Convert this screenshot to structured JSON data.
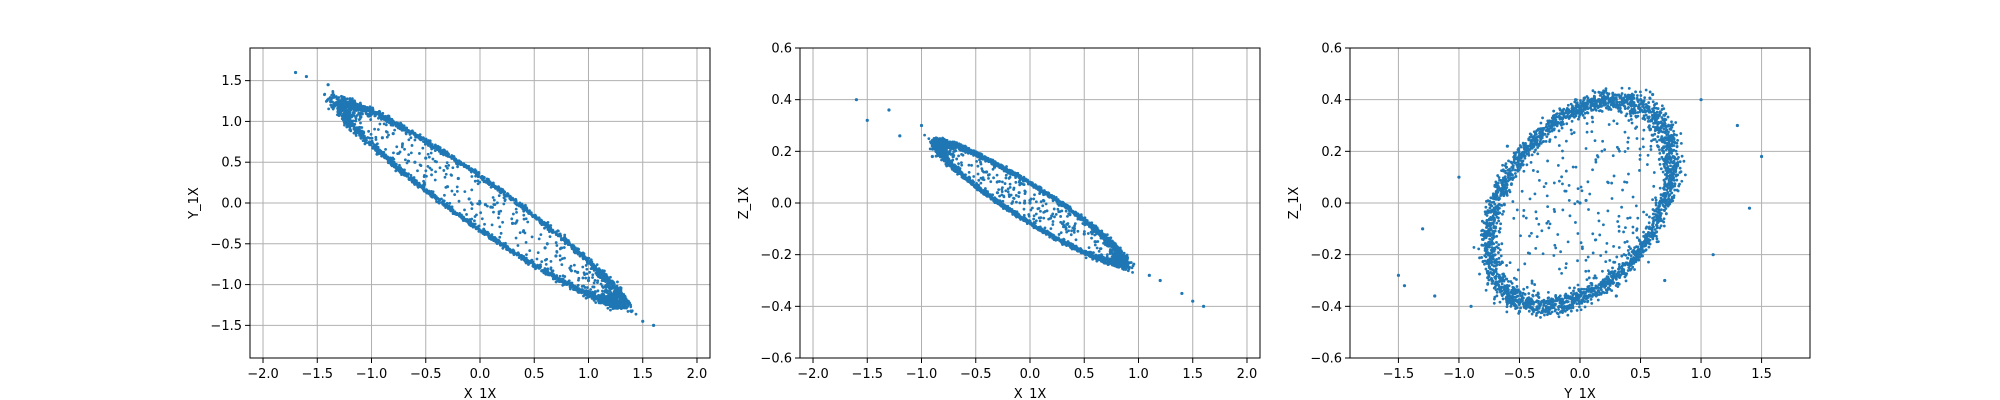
{
  "chart_data": [
    {
      "type": "scatter",
      "xlabel": "X_1X",
      "ylabel": "Y_1X",
      "xlim": [
        -2.12,
        2.12
      ],
      "ylim": [
        -1.9,
        1.9
      ],
      "xticks": [
        -2.0,
        -1.5,
        -1.0,
        -0.5,
        0.0,
        0.5,
        1.0,
        1.5,
        2.0
      ],
      "yticks": [
        -1.5,
        -1.0,
        -0.5,
        0.0,
        0.5,
        1.0,
        1.5
      ],
      "xtick_labels": [
        "−2.0",
        "−1.5",
        "−1.0",
        "−0.5",
        "0.0",
        "0.5",
        "1.0",
        "1.5",
        "2.0"
      ],
      "ytick_labels": [
        "−1.5",
        "−1.0",
        "−0.5",
        "0.0",
        "0.5",
        "1.0",
        "1.5"
      ],
      "grid": true,
      "color": "#1f77b4",
      "ring": {
        "center": [
          0.0,
          0.0
        ],
        "semi_major": 2.25,
        "semi_minor": 0.24,
        "angle_deg": -43.5,
        "band_width": 0.05
      },
      "x": [
        -1.6,
        -1.4,
        -1.1,
        -0.8,
        -0.5,
        -0.2,
        0.1,
        0.4,
        0.7,
        1.0,
        1.3,
        1.6,
        -1.7,
        -1.2,
        -0.9,
        -0.6,
        -0.3,
        0.0,
        0.3,
        0.6,
        0.9,
        1.2,
        1.5,
        -0.1,
        0.05
      ],
      "y": [
        1.55,
        1.45,
        1.2,
        0.85,
        0.55,
        0.3,
        -0.05,
        -0.35,
        -0.65,
        -0.95,
        -1.25,
        -1.5,
        1.6,
        1.1,
        0.8,
        0.5,
        0.2,
        0.0,
        -0.25,
        -0.55,
        -0.85,
        -1.15,
        -1.45,
        0.05,
        -0.02
      ]
    },
    {
      "type": "scatter",
      "xlabel": "X_1X",
      "ylabel": "Z_1X",
      "xlim": [
        -2.12,
        2.12
      ],
      "ylim": [
        -0.6,
        0.6
      ],
      "xticks": [
        -2.0,
        -1.5,
        -1.0,
        -0.5,
        0.0,
        0.5,
        1.0,
        1.5,
        2.0
      ],
      "yticks": [
        -0.6,
        -0.4,
        -0.2,
        0.0,
        0.2,
        0.4,
        0.6
      ],
      "xtick_labels": [
        "−2.0",
        "−1.5",
        "−1.0",
        "−0.5",
        "0.0",
        "0.5",
        "1.0",
        "1.5",
        "2.0"
      ],
      "ytick_labels": [
        "−0.6",
        "−0.4",
        "−0.2",
        "0.0",
        "0.2",
        "0.4",
        "0.6"
      ],
      "grid": true,
      "color": "#1f77b4",
      "ring": {
        "center": [
          0.0,
          0.0
        ],
        "semi_major": 1.75,
        "semi_minor": 0.075,
        "angle_deg": -14.5,
        "band_width": 0.05
      },
      "x": [
        -1.6,
        -1.3,
        -1.0,
        -0.7,
        -0.4,
        -0.1,
        0.2,
        0.5,
        0.8,
        1.1,
        1.4,
        1.6,
        -1.5,
        -1.2,
        -0.9,
        -0.6,
        -0.3,
        0.0,
        0.3,
        0.6,
        0.9,
        1.2,
        1.5,
        0.0,
        -0.05
      ],
      "y": [
        0.4,
        0.36,
        0.3,
        0.22,
        0.12,
        0.04,
        -0.05,
        -0.12,
        -0.2,
        -0.28,
        -0.35,
        -0.4,
        0.32,
        0.26,
        0.18,
        0.1,
        0.04,
        0.0,
        -0.08,
        -0.15,
        -0.24,
        -0.3,
        -0.38,
        0.01,
        0.0
      ]
    },
    {
      "type": "scatter",
      "xlabel": "Y_1X",
      "ylabel": "Z_1X",
      "xlim": [
        -1.9,
        1.9
      ],
      "ylim": [
        -0.6,
        0.6
      ],
      "xticks": [
        -1.5,
        -1.0,
        -0.5,
        0.0,
        0.5,
        1.0,
        1.5
      ],
      "yticks": [
        -0.6,
        -0.4,
        -0.2,
        0.0,
        0.2,
        0.4,
        0.6
      ],
      "xtick_labels": [
        "−1.5",
        "−1.0",
        "−0.5",
        "0.0",
        "0.5",
        "1.0",
        "1.5"
      ],
      "ytick_labels": [
        "−0.6",
        "−0.4",
        "−0.2",
        "0.0",
        "0.2",
        "0.4",
        "0.6"
      ],
      "grid": true,
      "color": "#1f77b4",
      "ring": {
        "center": [
          0.0,
          0.0
        ],
        "semi_major": 1.55,
        "semi_minor": 0.36,
        "angle_deg": 14.5,
        "band_width": 0.05
      },
      "x": [
        -1.5,
        -1.3,
        -1.0,
        -0.6,
        -0.2,
        0.2,
        0.6,
        1.0,
        1.3,
        1.5,
        1.4,
        1.1,
        0.7,
        0.3,
        -0.1,
        -0.5,
        -0.9,
        -1.2,
        -1.45,
        0.0,
        0.05
      ],
      "y": [
        -0.28,
        -0.1,
        0.1,
        0.22,
        0.32,
        0.38,
        0.42,
        0.4,
        0.3,
        0.18,
        -0.02,
        -0.2,
        -0.3,
        -0.36,
        -0.4,
        -0.42,
        -0.4,
        -0.36,
        -0.32,
        0.0,
        0.01
      ]
    }
  ]
}
